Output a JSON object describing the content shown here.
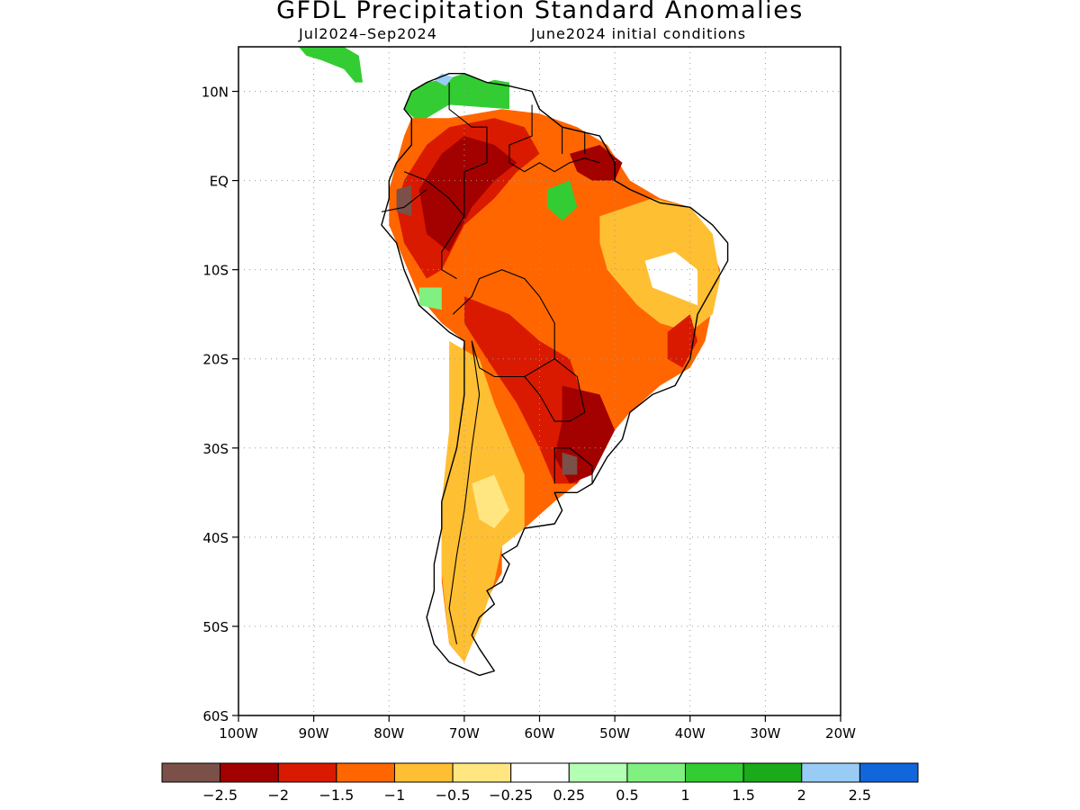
{
  "title": "GFDL Precipitation Standard Anomalies",
  "subtitle_period": "Jul2024–Sep2024",
  "subtitle_init": "June2024 initial conditions",
  "map": {
    "region": "South America",
    "lon_range": [
      -100,
      -20
    ],
    "lat_range": [
      -60,
      15
    ],
    "gridlines": "dotted",
    "lat_ticks": [
      {
        "lat": 10,
        "label": "10N"
      },
      {
        "lat": 0,
        "label": "EQ"
      },
      {
        "lat": -10,
        "label": "10S"
      },
      {
        "lat": -20,
        "label": "20S"
      },
      {
        "lat": -30,
        "label": "30S"
      },
      {
        "lat": -40,
        "label": "40S"
      },
      {
        "lat": -50,
        "label": "50S"
      },
      {
        "lat": -60,
        "label": "60S"
      }
    ],
    "lon_ticks": [
      {
        "lon": -100,
        "label": "100W"
      },
      {
        "lon": -90,
        "label": "90W"
      },
      {
        "lon": -80,
        "label": "80W"
      },
      {
        "lon": -70,
        "label": "70W"
      },
      {
        "lon": -60,
        "label": "60W"
      },
      {
        "lon": -50,
        "label": "50W"
      },
      {
        "lon": -40,
        "label": "40W"
      },
      {
        "lon": -30,
        "label": "30W"
      },
      {
        "lon": -20,
        "label": "20W"
      }
    ]
  },
  "anomaly_regions": [
    {
      "name": "venezuela-colombia-wet",
      "color": "#33cc33",
      "pts": [
        [
          -78,
          8
        ],
        [
          -77,
          10
        ],
        [
          -75,
          11
        ],
        [
          -72,
          11.5
        ],
        [
          -70,
          12
        ],
        [
          -67,
          11
        ],
        [
          -66,
          11.3
        ],
        [
          -64,
          11
        ],
        [
          -64,
          8
        ],
        [
          -72,
          8.5
        ],
        [
          -76,
          6.5
        ]
      ]
    },
    {
      "name": "blue-spot",
      "color": "#99ccf5",
      "pts": [
        [
          -74,
          11.3
        ],
        [
          -73,
          12
        ],
        [
          -71.5,
          11.6
        ],
        [
          -72.5,
          10.6
        ]
      ]
    },
    {
      "name": "central-america-wet",
      "color": "#33cc33",
      "pts": [
        [
          -92,
          15
        ],
        [
          -88,
          15.2
        ],
        [
          -86,
          15
        ],
        [
          -84,
          14
        ],
        [
          -83.5,
          11
        ],
        [
          -84.5,
          11
        ],
        [
          -86,
          12.5
        ],
        [
          -89,
          13.5
        ],
        [
          -91,
          14
        ]
      ]
    },
    {
      "name": "amazon-orange",
      "color": "#ff6600",
      "pts": [
        [
          -77,
          7
        ],
        [
          -72,
          7
        ],
        [
          -65,
          8
        ],
        [
          -60,
          7.5
        ],
        [
          -55,
          6
        ],
        [
          -51,
          4
        ],
        [
          -48,
          0
        ],
        [
          -44,
          -2
        ],
        [
          -40,
          -3
        ],
        [
          -38,
          -6
        ],
        [
          -36,
          -10
        ],
        [
          -37,
          -14
        ],
        [
          -38,
          -18
        ],
        [
          -40,
          -21
        ],
        [
          -44,
          -23
        ],
        [
          -48,
          -26
        ],
        [
          -50,
          -28
        ],
        [
          -53,
          -32
        ],
        [
          -55,
          -34
        ],
        [
          -58,
          -36
        ],
        [
          -62,
          -39
        ],
        [
          -65,
          -41
        ],
        [
          -65,
          -44
        ],
        [
          -67,
          -47
        ],
        [
          -68,
          -50
        ],
        [
          -70,
          -54
        ],
        [
          -72,
          -52
        ],
        [
          -73,
          -45
        ],
        [
          -73,
          -38
        ],
        [
          -72,
          -30
        ],
        [
          -71,
          -22
        ],
        [
          -70,
          -18
        ],
        [
          -73,
          -16
        ],
        [
          -76,
          -13
        ],
        [
          -78,
          -9
        ],
        [
          -80,
          -5
        ],
        [
          -80,
          -1
        ],
        [
          -79,
          2
        ],
        [
          -78,
          5
        ]
      ]
    },
    {
      "name": "brazil-light",
      "color": "#ffbf33",
      "pts": [
        [
          -52,
          -4
        ],
        [
          -45,
          -2
        ],
        [
          -40,
          -3
        ],
        [
          -37,
          -6
        ],
        [
          -36,
          -11
        ],
        [
          -37,
          -15
        ],
        [
          -40,
          -17
        ],
        [
          -44,
          -16
        ],
        [
          -47,
          -14
        ],
        [
          -51,
          -10
        ],
        [
          -52,
          -7
        ]
      ]
    },
    {
      "name": "brazil-white",
      "color": "#ffffff",
      "pts": [
        [
          -46,
          -9
        ],
        [
          -42,
          -8
        ],
        [
          -39,
          -10
        ],
        [
          -39,
          -14
        ],
        [
          -42,
          -13
        ],
        [
          -45,
          -12
        ]
      ]
    },
    {
      "name": "andes-light",
      "color": "#ffbf33",
      "pts": [
        [
          -72,
          -18
        ],
        [
          -68,
          -20
        ],
        [
          -66,
          -25
        ],
        [
          -62,
          -33
        ],
        [
          -62,
          -39
        ],
        [
          -65,
          -41
        ],
        [
          -66,
          -45
        ],
        [
          -68,
          -50
        ],
        [
          -70,
          -54
        ],
        [
          -72,
          -52
        ],
        [
          -73,
          -44
        ],
        [
          -73,
          -36
        ],
        [
          -72,
          -28
        ],
        [
          -72,
          -21
        ]
      ]
    },
    {
      "name": "patagonia-pale",
      "color": "#ffe680",
      "pts": [
        [
          -69,
          -34
        ],
        [
          -66,
          -33
        ],
        [
          -64,
          -37
        ],
        [
          -66,
          -39
        ],
        [
          -68,
          -38
        ]
      ]
    },
    {
      "name": "amazon-red",
      "color": "#d91a00",
      "pts": [
        [
          -78,
          0
        ],
        [
          -75,
          4
        ],
        [
          -72,
          6
        ],
        [
          -66,
          7
        ],
        [
          -62,
          6
        ],
        [
          -60,
          3
        ],
        [
          -63,
          1
        ],
        [
          -66,
          -2
        ],
        [
          -70,
          -5
        ],
        [
          -73,
          -10
        ],
        [
          -75,
          -11
        ],
        [
          -78,
          -7
        ],
        [
          -79,
          -3
        ]
      ]
    },
    {
      "name": "amazon-darkred",
      "color": "#a30000",
      "pts": [
        [
          -76,
          -1
        ],
        [
          -73,
          3
        ],
        [
          -70,
          5
        ],
        [
          -66,
          4
        ],
        [
          -63,
          2
        ],
        [
          -66,
          0
        ],
        [
          -69,
          -3
        ],
        [
          -72,
          -8
        ],
        [
          -75,
          -6
        ]
      ]
    },
    {
      "name": "guianas-darkred",
      "color": "#a30000",
      "pts": [
        [
          -56,
          3
        ],
        [
          -52,
          4
        ],
        [
          -49,
          2
        ],
        [
          -50,
          0
        ],
        [
          -53,
          0
        ],
        [
          -55,
          1
        ]
      ]
    },
    {
      "name": "bolivia-red",
      "color": "#d91a00",
      "pts": [
        [
          -70,
          -13
        ],
        [
          -64,
          -15
        ],
        [
          -60,
          -18
        ],
        [
          -56,
          -20
        ],
        [
          -54,
          -25
        ],
        [
          -53,
          -31
        ],
        [
          -55,
          -34
        ],
        [
          -58,
          -34
        ],
        [
          -60,
          -30
        ],
        [
          -63,
          -25
        ],
        [
          -67,
          -20
        ],
        [
          -70,
          -16
        ]
      ]
    },
    {
      "name": "uruguay-darkred",
      "color": "#a30000",
      "pts": [
        [
          -57,
          -23
        ],
        [
          -52,
          -24
        ],
        [
          -50,
          -28
        ],
        [
          -53,
          -33
        ],
        [
          -56,
          -34
        ],
        [
          -58,
          -31
        ],
        [
          -57,
          -27
        ]
      ]
    },
    {
      "name": "uruguay-brown",
      "color": "#7a5048",
      "pts": [
        [
          -57,
          -30.5
        ],
        [
          -55,
          -31
        ],
        [
          -55,
          -33
        ],
        [
          -57,
          -33
        ]
      ]
    },
    {
      "name": "ecuador-brown",
      "color": "#7a5048",
      "pts": [
        [
          -79,
          -1
        ],
        [
          -77,
          -0.5
        ],
        [
          -77,
          -4
        ],
        [
          -79,
          -3.5
        ]
      ]
    },
    {
      "name": "brazil-wet-spot",
      "color": "#33cc33",
      "pts": [
        [
          -59,
          -1
        ],
        [
          -56,
          0
        ],
        [
          -55,
          -3
        ],
        [
          -57,
          -4.5
        ],
        [
          -59,
          -3
        ]
      ]
    },
    {
      "name": "peru-wet-spot",
      "color": "#80f080",
      "pts": [
        [
          -76,
          -12
        ],
        [
          -73,
          -12
        ],
        [
          -73,
          -14.5
        ],
        [
          -76,
          -14
        ]
      ]
    },
    {
      "name": "east-coast-red",
      "color": "#d91a00",
      "pts": [
        [
          -43,
          -17
        ],
        [
          -40,
          -15
        ],
        [
          -39,
          -18
        ],
        [
          -41,
          -21
        ],
        [
          -43,
          -20
        ]
      ]
    }
  ],
  "continent_outline": [
    [
      -78,
      8
    ],
    [
      -77,
      10
    ],
    [
      -75,
      11
    ],
    [
      -72,
      12
    ],
    [
      -70,
      12
    ],
    [
      -67,
      11
    ],
    [
      -64,
      10.6
    ],
    [
      -61,
      10
    ],
    [
      -60,
      8
    ],
    [
      -57,
      6
    ],
    [
      -52,
      5
    ],
    [
      -50,
      2
    ],
    [
      -50,
      0
    ],
    [
      -48,
      -1
    ],
    [
      -44,
      -2.5
    ],
    [
      -40,
      -3
    ],
    [
      -37,
      -5
    ],
    [
      -35,
      -7
    ],
    [
      -35,
      -9
    ],
    [
      -37,
      -12
    ],
    [
      -39,
      -15
    ],
    [
      -40,
      -20
    ],
    [
      -42,
      -23
    ],
    [
      -45,
      -24
    ],
    [
      -48,
      -26
    ],
    [
      -49,
      -29
    ],
    [
      -51,
      -31
    ],
    [
      -53,
      -34
    ],
    [
      -55,
      -35
    ],
    [
      -58,
      -35
    ],
    [
      -57,
      -37
    ],
    [
      -58,
      -38.5
    ],
    [
      -62,
      -39
    ],
    [
      -63,
      -41
    ],
    [
      -65,
      -42
    ],
    [
      -64,
      -43
    ],
    [
      -65,
      -45
    ],
    [
      -67,
      -46
    ],
    [
      -66,
      -47.5
    ],
    [
      -68,
      -49
    ],
    [
      -69,
      -51
    ],
    [
      -68,
      -52.5
    ],
    [
      -66,
      -55
    ],
    [
      -68,
      -55.5
    ],
    [
      -72,
      -54
    ],
    [
      -74,
      -52
    ],
    [
      -75,
      -49
    ],
    [
      -74,
      -46
    ],
    [
      -74,
      -43
    ],
    [
      -73,
      -39
    ],
    [
      -73,
      -36
    ],
    [
      -71,
      -30
    ],
    [
      -70,
      -24
    ],
    [
      -70,
      -18
    ],
    [
      -72,
      -17
    ],
    [
      -76,
      -14
    ],
    [
      -78,
      -10
    ],
    [
      -79,
      -7
    ],
    [
      -81,
      -5
    ],
    [
      -80,
      -2
    ],
    [
      -80,
      0
    ],
    [
      -79,
      2
    ],
    [
      -77,
      4
    ],
    [
      -77,
      7
    ]
  ],
  "country_borders": [
    [
      [
        -71.5,
        -15
      ],
      [
        -69,
        -13
      ],
      [
        -68,
        -11
      ],
      [
        -65,
        -10
      ],
      [
        -62,
        -11
      ],
      [
        -60,
        -13
      ],
      [
        -58,
        -16
      ],
      [
        -58,
        -20
      ],
      [
        -62,
        -22
      ],
      [
        -66,
        -22
      ],
      [
        -68,
        -21
      ],
      [
        -69,
        -18
      ]
    ],
    [
      [
        -58,
        -20
      ],
      [
        -55,
        -22
      ],
      [
        -54,
        -26
      ],
      [
        -56,
        -27
      ],
      [
        -58,
        -27
      ],
      [
        -60,
        -24
      ],
      [
        -62,
        -22
      ]
    ],
    [
      [
        -69,
        -18
      ],
      [
        -68,
        -24
      ],
      [
        -69,
        -30
      ],
      [
        -70,
        -37
      ],
      [
        -71,
        -42
      ],
      [
        -72,
        -48
      ],
      [
        -71,
        -52
      ]
    ],
    [
      [
        -58,
        -34
      ],
      [
        -58,
        -30
      ],
      [
        -56,
        -30
      ],
      [
        -53,
        -32
      ],
      [
        -53,
        -34
      ]
    ],
    [
      [
        -78,
        1
      ],
      [
        -75,
        0
      ],
      [
        -72,
        -2
      ],
      [
        -70,
        -4
      ],
      [
        -73,
        -8
      ],
      [
        -73,
        -10
      ],
      [
        -71,
        -11
      ]
    ],
    [
      [
        -72,
        11
      ],
      [
        -72,
        8
      ],
      [
        -69,
        6
      ],
      [
        -67,
        6
      ],
      [
        -67,
        2
      ],
      [
        -70,
        1
      ],
      [
        -70,
        -4
      ]
    ],
    [
      [
        -61,
        8.5
      ],
      [
        -61,
        5
      ],
      [
        -64,
        4
      ],
      [
        -64,
        2
      ],
      [
        -62,
        1
      ],
      [
        -60,
        2
      ],
      [
        -58,
        1
      ],
      [
        -56,
        2
      ],
      [
        -54,
        2.5
      ],
      [
        -52,
        2
      ]
    ],
    [
      [
        -57,
        6
      ],
      [
        -57,
        3
      ]
    ],
    [
      [
        -54,
        5.5
      ],
      [
        -54,
        3
      ]
    ],
    [
      [
        -81,
        -3.5
      ],
      [
        -78,
        -3
      ],
      [
        -75,
        -1
      ]
    ]
  ],
  "colorbar": {
    "colors": [
      "#7a5048",
      "#a30000",
      "#d91a00",
      "#ff6600",
      "#ffbf33",
      "#ffe680",
      "#ffffff",
      "#b3ffb3",
      "#80f080",
      "#33cc33",
      "#1aaa1a",
      "#99ccf5",
      "#1166d9"
    ],
    "labels": [
      "−2.5",
      "−2",
      "−1.5",
      "−1",
      "−0.5",
      "−0.25",
      "0.25",
      "0.5",
      "1",
      "1.5",
      "2",
      "2.5"
    ]
  }
}
